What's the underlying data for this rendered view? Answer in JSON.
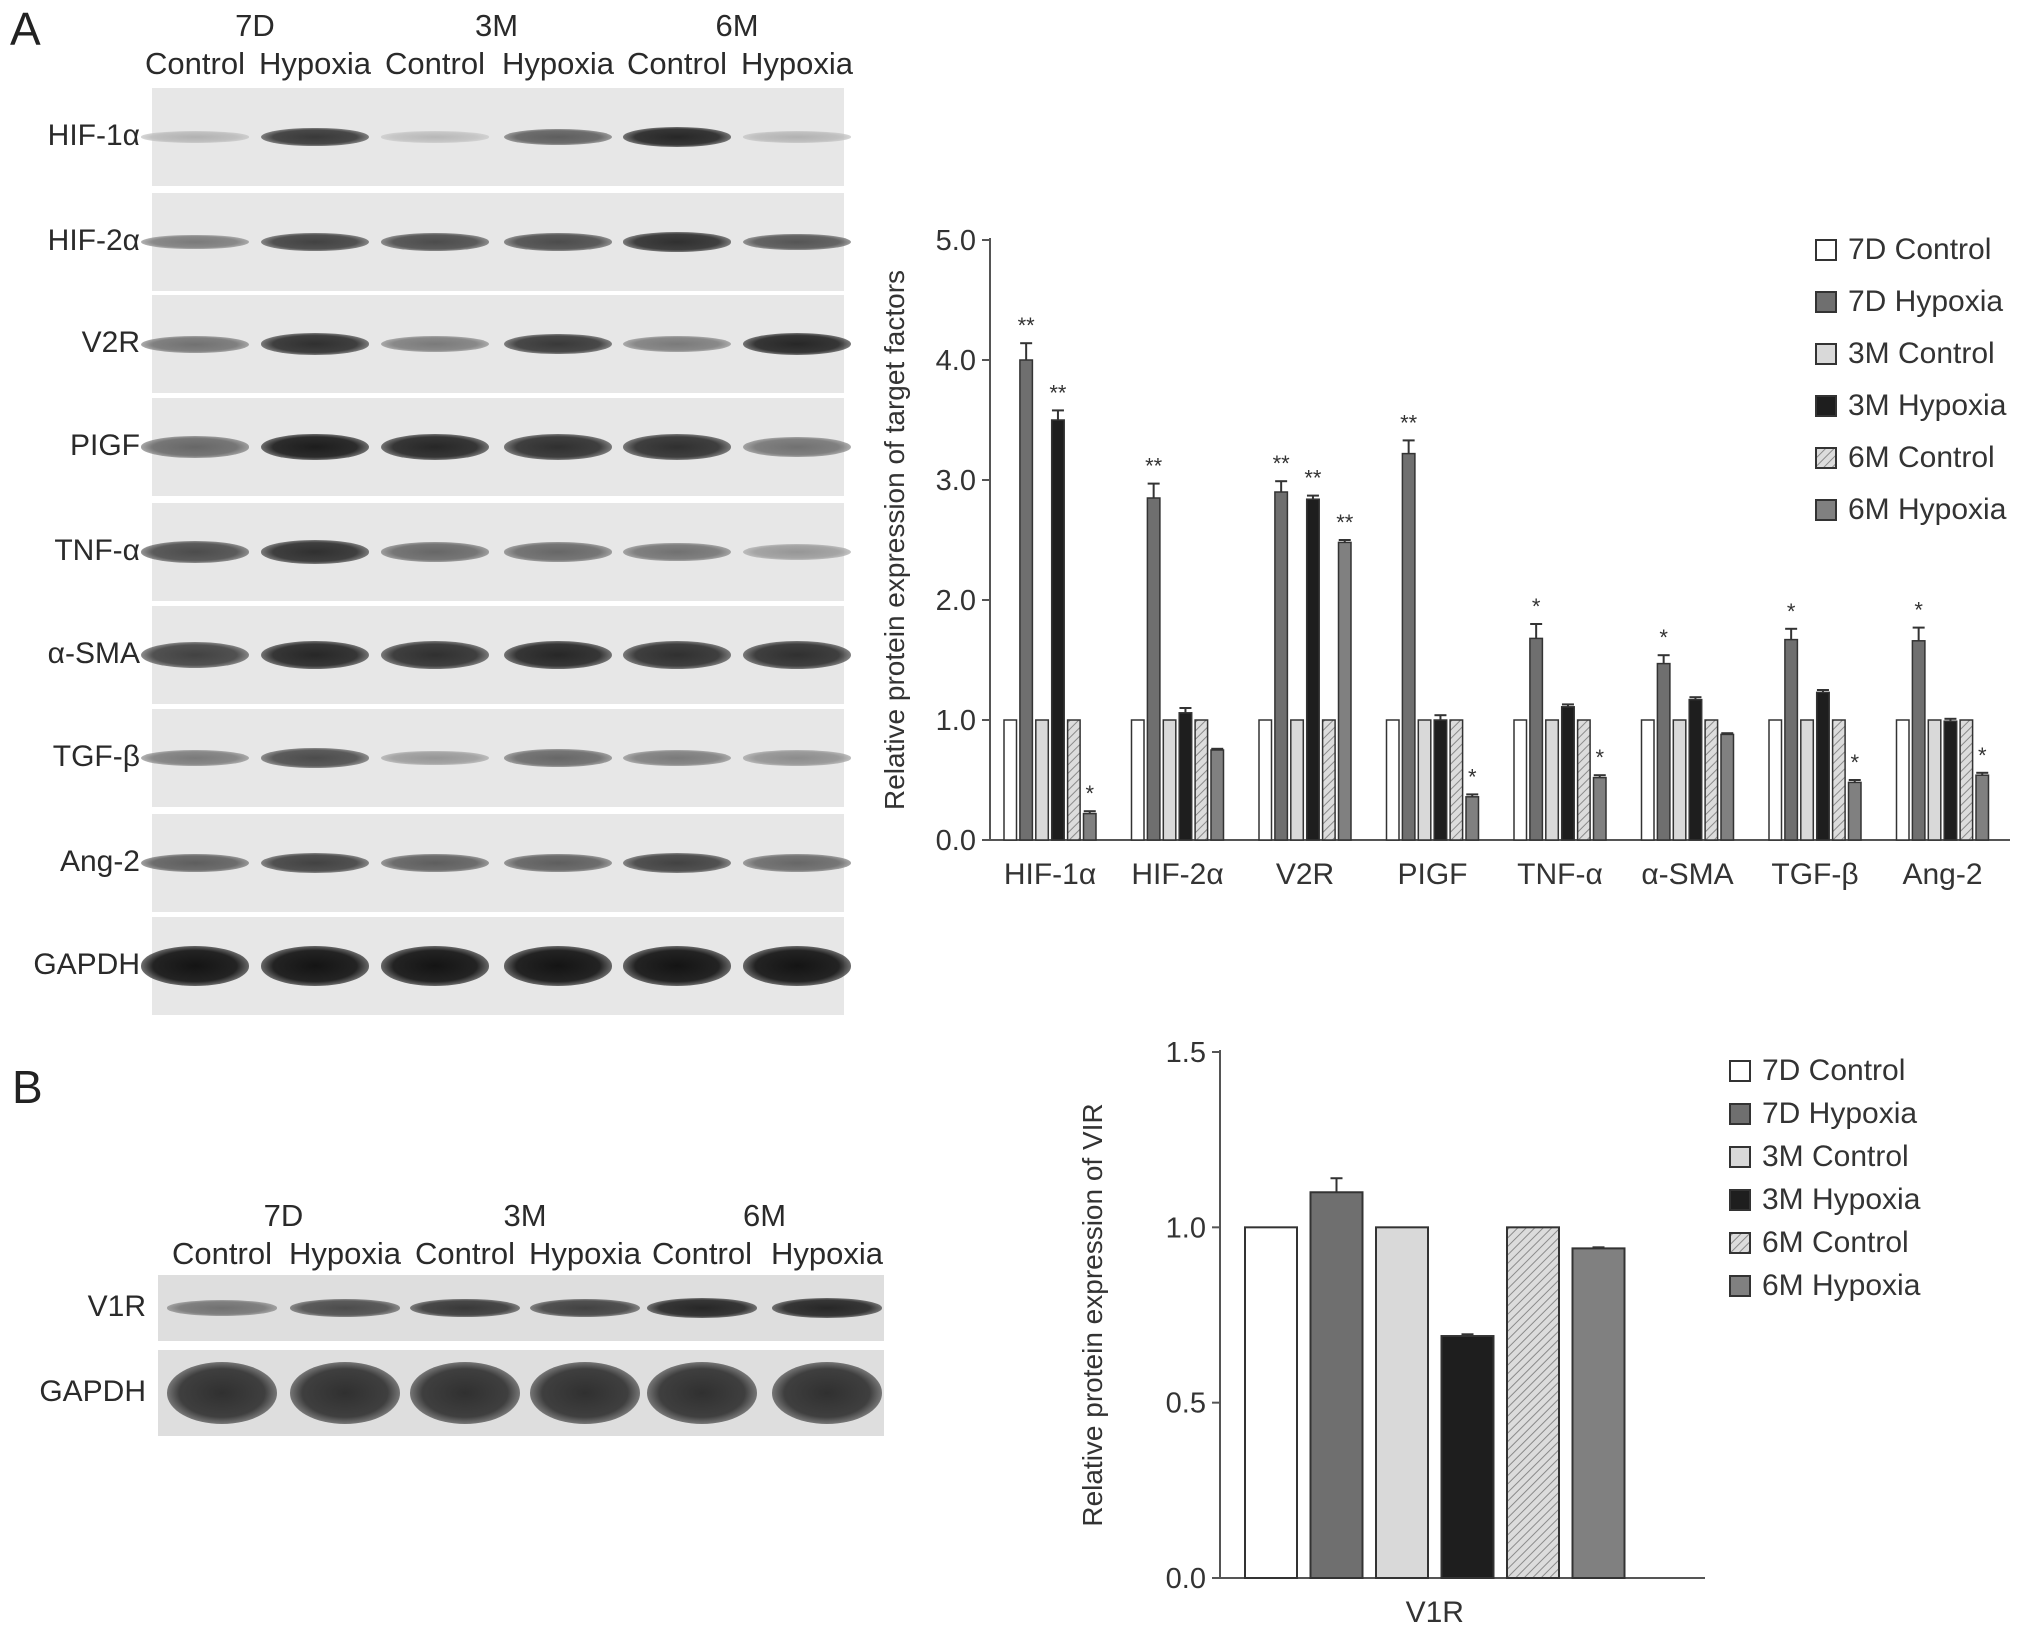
{
  "panel_a": {
    "letter": "A",
    "lane_groups": [
      "7D",
      "3M",
      "6M"
    ],
    "lanes": [
      "Control",
      "Hypoxia",
      "Control",
      "Hypoxia",
      "Control",
      "Hypoxia"
    ],
    "blots": [
      {
        "label": "HIF-1α",
        "intensity": [
          0.15,
          0.8,
          0.12,
          0.6,
          0.9,
          0.15
        ]
      },
      {
        "label": "HIF-2α",
        "intensity": [
          0.45,
          0.75,
          0.7,
          0.7,
          0.85,
          0.65
        ]
      },
      {
        "label": "V2R",
        "intensity": [
          0.5,
          0.85,
          0.45,
          0.8,
          0.45,
          0.9
        ]
      },
      {
        "label": "PIGF",
        "intensity": [
          0.55,
          0.95,
          0.9,
          0.85,
          0.85,
          0.5
        ]
      },
      {
        "label": "TNF-α",
        "intensity": [
          0.7,
          0.85,
          0.55,
          0.55,
          0.5,
          0.3
        ]
      },
      {
        "label": "α-SMA",
        "intensity": [
          0.75,
          0.9,
          0.85,
          0.9,
          0.85,
          0.85
        ]
      },
      {
        "label": "TGF-β",
        "intensity": [
          0.45,
          0.7,
          0.3,
          0.55,
          0.45,
          0.35
        ]
      },
      {
        "label": "Ang-2",
        "intensity": [
          0.6,
          0.75,
          0.6,
          0.6,
          0.75,
          0.55
        ]
      },
      {
        "label": "GAPDH",
        "intensity": [
          1,
          1,
          1,
          1,
          1,
          1
        ]
      }
    ]
  },
  "panel_b": {
    "letter": "B",
    "lane_groups": [
      "7D",
      "3M",
      "6M"
    ],
    "lanes": [
      "Control",
      "Hypoxia",
      "Control",
      "Hypoxia",
      "Control",
      "Hypoxia"
    ],
    "blots": [
      {
        "label": "V1R",
        "intensity": [
          0.5,
          0.7,
          0.8,
          0.75,
          0.9,
          0.9
        ]
      },
      {
        "label": "GAPDH",
        "intensity": [
          0.85,
          0.85,
          0.85,
          0.85,
          0.85,
          0.85
        ]
      }
    ]
  },
  "legend_series": [
    "7D Control",
    "7D Hypoxia",
    "3M Control",
    "3M Hypoxia",
    "6M Control",
    "6M Hypoxia"
  ],
  "colors": {
    "7D Control": "#ffffff",
    "7D Hypoxia": "#6f6f6f",
    "3M Control": "#d9d9d9",
    "3M Hypoxia": "#1e1e1e",
    "6M Control": "#c8c8c8",
    "6M Hypoxia": "#808080",
    "axis": "#555555"
  },
  "chart_data": [
    {
      "type": "bar",
      "ylabel": "Relative protein expression of target factors",
      "ylim": [
        0,
        5
      ],
      "yticks": [
        "0.0",
        "1.0",
        "2.0",
        "3.0",
        "4.0",
        "5.0"
      ],
      "categories": [
        "HIF-1α",
        "HIF-2α",
        "V2R",
        "PIGF",
        "TNF-α",
        "α-SMA",
        "TGF-β",
        "Ang-2"
      ],
      "legend_position": "right",
      "series": [
        {
          "name": "7D Control",
          "values": [
            1,
            1,
            1,
            1,
            1,
            1,
            1,
            1
          ],
          "errors": [
            0,
            0,
            0,
            0,
            0,
            0,
            0,
            0
          ],
          "marks": [
            "",
            "",
            "",
            "",
            "",
            "",
            "",
            ""
          ]
        },
        {
          "name": "7D Hypoxia",
          "values": [
            4.0,
            2.85,
            2.9,
            3.22,
            1.68,
            1.47,
            1.67,
            1.66
          ],
          "errors": [
            0.14,
            0.12,
            0.09,
            0.11,
            0.12,
            0.07,
            0.09,
            0.11
          ],
          "marks": [
            "**",
            "**",
            "**",
            "**",
            "*",
            "*",
            "*",
            "*"
          ]
        },
        {
          "name": "3M Control",
          "values": [
            1,
            1,
            1,
            1,
            1,
            1,
            1,
            1
          ],
          "errors": [
            0,
            0,
            0,
            0,
            0,
            0,
            0,
            0
          ],
          "marks": [
            "",
            "",
            "",
            "",
            "",
            "",
            "",
            ""
          ]
        },
        {
          "name": "3M Hypoxia",
          "values": [
            3.5,
            1.06,
            2.84,
            1.0,
            1.11,
            1.17,
            1.23,
            0.99
          ],
          "errors": [
            0.08,
            0.04,
            0.03,
            0.04,
            0.02,
            0.02,
            0.02,
            0.02
          ],
          "marks": [
            "**",
            "",
            "**",
            "",
            "",
            "",
            "",
            ""
          ]
        },
        {
          "name": "6M Control",
          "values": [
            1,
            1,
            1,
            1,
            1,
            1,
            1,
            1
          ],
          "errors": [
            0,
            0,
            0,
            0,
            0,
            0,
            0,
            0
          ],
          "marks": [
            "",
            "",
            "",
            "",
            "",
            "",
            "",
            ""
          ]
        },
        {
          "name": "6M Hypoxia",
          "values": [
            0.22,
            0.75,
            2.48,
            0.36,
            0.52,
            0.88,
            0.48,
            0.54
          ],
          "errors": [
            0.02,
            0.01,
            0.02,
            0.02,
            0.02,
            0.01,
            0.02,
            0.02
          ],
          "marks": [
            "*",
            "",
            "**",
            "*",
            "*",
            "",
            "*",
            "*"
          ]
        }
      ]
    },
    {
      "type": "bar",
      "ylabel": "Relative protein expression of VIR",
      "ylim": [
        0,
        1.5
      ],
      "yticks": [
        "0.0",
        "0.5",
        "1.0",
        "1.5"
      ],
      "categories": [
        "V1R"
      ],
      "legend_position": "right",
      "series": [
        {
          "name": "7D Control",
          "values": [
            1.0
          ],
          "errors": [
            0
          ]
        },
        {
          "name": "7D Hypoxia",
          "values": [
            1.1
          ],
          "errors": [
            0.04
          ]
        },
        {
          "name": "3M Control",
          "values": [
            1.0
          ],
          "errors": [
            0
          ]
        },
        {
          "name": "3M Hypoxia",
          "values": [
            0.69
          ],
          "errors": [
            0.005
          ]
        },
        {
          "name": "6M Control",
          "values": [
            1.0
          ],
          "errors": [
            0
          ]
        },
        {
          "name": "6M Hypoxia",
          "values": [
            0.94
          ],
          "errors": [
            0.003
          ]
        }
      ]
    }
  ]
}
